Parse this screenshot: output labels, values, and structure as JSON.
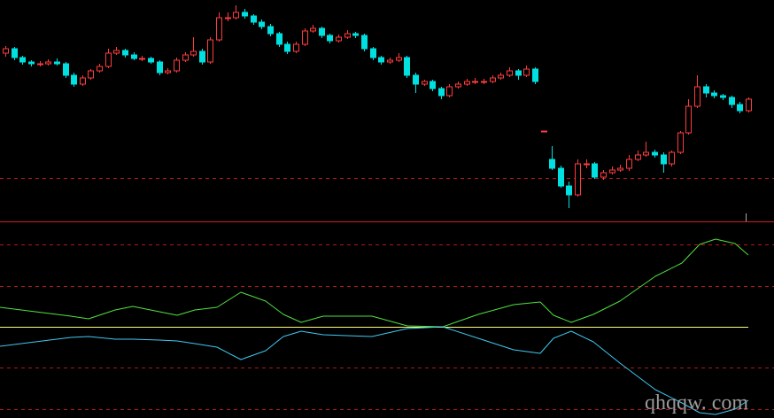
{
  "chart_data": [
    {
      "type": "candlestick",
      "up_color": "#ff3c3c",
      "down_color": "#00e0e0",
      "ylim": [
        0,
        250
      ],
      "grid_lines": [
        49
      ],
      "grid_color": "#b01818",
      "ohlc": [
        [
          190,
          198,
          186,
          195
        ],
        [
          195,
          197,
          182,
          185
        ],
        [
          185,
          187,
          177,
          180
        ],
        [
          180,
          182,
          175,
          178
        ],
        [
          178,
          181,
          175,
          178
        ],
        [
          178,
          183,
          176,
          180
        ],
        [
          180,
          184,
          176,
          178
        ],
        [
          178,
          180,
          162,
          165
        ],
        [
          165,
          168,
          152,
          155
        ],
        [
          155,
          165,
          153,
          162
        ],
        [
          162,
          172,
          160,
          170
        ],
        [
          170,
          178,
          168,
          175
        ],
        [
          175,
          195,
          173,
          190
        ],
        [
          190,
          197,
          188,
          193
        ],
        [
          193,
          195,
          185,
          188
        ],
        [
          188,
          191,
          182,
          184
        ],
        [
          184,
          187,
          181,
          184
        ],
        [
          184,
          186,
          178,
          180
        ],
        [
          180,
          182,
          165,
          168
        ],
        [
          168,
          173,
          166,
          170
        ],
        [
          170,
          185,
          168,
          182
        ],
        [
          182,
          191,
          180,
          188
        ],
        [
          188,
          208,
          186,
          192
        ],
        [
          192,
          195,
          177,
          180
        ],
        [
          180,
          208,
          178,
          205
        ],
        [
          205,
          236,
          203,
          230
        ],
        [
          230,
          236,
          226,
          230
        ],
        [
          230,
          244,
          228,
          236
        ],
        [
          236,
          240,
          229,
          232
        ],
        [
          232,
          234,
          222,
          225
        ],
        [
          225,
          228,
          217,
          220
        ],
        [
          220,
          223,
          209,
          212
        ],
        [
          212,
          214,
          197,
          200
        ],
        [
          200,
          203,
          189,
          192
        ],
        [
          192,
          203,
          190,
          200
        ],
        [
          200,
          218,
          198,
          215
        ],
        [
          215,
          222,
          213,
          218
        ],
        [
          218,
          220,
          207,
          210
        ],
        [
          210,
          212,
          201,
          204
        ],
        [
          204,
          211,
          202,
          208
        ],
        [
          208,
          216,
          206,
          212
        ],
        [
          212,
          214,
          207,
          210
        ],
        [
          210,
          212,
          192,
          195
        ],
        [
          195,
          197,
          182,
          185
        ],
        [
          185,
          187,
          177,
          180
        ],
        [
          180,
          185,
          178,
          182
        ],
        [
          182,
          190,
          180,
          185
        ],
        [
          185,
          187,
          162,
          165
        ],
        [
          165,
          168,
          145,
          155
        ],
        [
          155,
          160,
          153,
          158
        ],
        [
          158,
          160,
          147,
          150
        ],
        [
          150,
          152,
          138,
          142
        ],
        [
          142,
          155,
          140,
          152
        ],
        [
          152,
          158,
          150,
          155
        ],
        [
          155,
          161,
          153,
          158
        ],
        [
          158,
          162,
          155,
          158
        ],
        [
          158,
          161,
          155,
          158
        ],
        [
          158,
          165,
          156,
          162
        ],
        [
          162,
          168,
          160,
          165
        ],
        [
          165,
          174,
          163,
          170
        ],
        [
          170,
          172,
          160,
          165
        ],
        [
          165,
          176,
          163,
          172
        ],
        [
          172,
          174,
          155,
          158
        ],
        [
          102,
          102,
          102,
          102
        ],
        [
          70,
          85,
          58,
          60
        ],
        [
          60,
          63,
          38,
          40
        ],
        [
          40,
          45,
          15,
          30
        ],
        [
          30,
          70,
          28,
          65
        ],
        [
          65,
          70,
          60,
          65
        ],
        [
          65,
          67,
          48,
          50
        ],
        [
          50,
          58,
          47,
          55
        ],
        [
          55,
          62,
          53,
          58
        ],
        [
          58,
          64,
          56,
          60
        ],
        [
          60,
          75,
          57,
          70
        ],
        [
          70,
          80,
          68,
          75
        ],
        [
          75,
          90,
          73,
          78
        ],
        [
          78,
          81,
          72,
          75
        ],
        [
          75,
          78,
          55,
          65
        ],
        [
          65,
          80,
          62,
          78
        ],
        [
          78,
          102,
          76,
          100
        ],
        [
          100,
          138,
          98,
          130
        ],
        [
          130,
          165,
          128,
          152
        ],
        [
          152,
          155,
          140,
          145
        ],
        [
          145,
          148,
          139,
          142
        ],
        [
          142,
          144,
          137,
          140
        ],
        [
          140,
          142,
          128,
          132
        ],
        [
          132,
          135,
          122,
          125
        ],
        [
          125,
          140,
          123,
          138
        ]
      ]
    },
    {
      "type": "line",
      "xlim": [
        0,
        874
      ],
      "ylim": [
        -103,
        118
      ],
      "grid_lines": [
        93,
        46,
        -46,
        -93
      ],
      "grid_color": "#b01818",
      "zero_line": 0,
      "zero_color": "#ffff80",
      "x": [
        0,
        40,
        80,
        100,
        130,
        150,
        180,
        200,
        220,
        245,
        272,
        300,
        320,
        340,
        365,
        420,
        460,
        500,
        540,
        580,
        610,
        625,
        645,
        670,
        700,
        740,
        770,
        790,
        808,
        830,
        845
      ],
      "series": [
        {
          "color": "#50e040",
          "values": [
            22,
            17,
            12,
            9,
            19,
            23,
            17,
            13,
            19,
            22,
            39,
            29,
            14,
            5,
            12,
            12,
            1,
            0,
            14,
            25,
            28,
            13,
            5,
            14,
            29,
            57,
            72,
            93,
            99,
            94,
            81
          ]
        },
        {
          "color": "#40c8f0",
          "values": [
            -22,
            -17,
            -12,
            -11,
            -14,
            -14,
            -15,
            -16,
            -19,
            -23,
            -37,
            -27,
            -11,
            -5,
            -9,
            -11,
            -2,
            0,
            -13,
            -26,
            -30,
            -13,
            -5,
            -17,
            -41,
            -71,
            -86,
            -97,
            -99,
            -93,
            -83
          ]
        }
      ]
    }
  ],
  "watermark": "qhqqw. com"
}
